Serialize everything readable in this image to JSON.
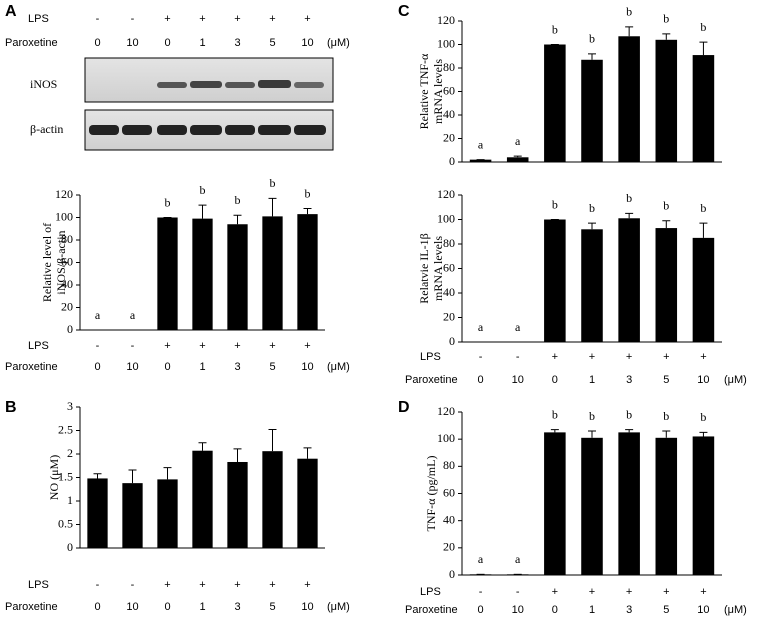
{
  "panel_labels": [
    "A",
    "B",
    "C",
    "D"
  ],
  "blot": {
    "treatments": [
      {
        "name": "LPS",
        "labels": [
          "-",
          "-",
          "+",
          "+",
          "+",
          "+",
          "+"
        ]
      },
      {
        "name": "Paroxetine",
        "labels": [
          "0",
          "10",
          "0",
          "1",
          "3",
          "5",
          "10"
        ]
      }
    ],
    "unit": "(μM)",
    "bands": [
      "iNOS",
      "β-actin"
    ]
  },
  "chart_data": [
    {
      "type": "bar",
      "ylabel": [
        "Relative level of",
        "iNOS/β-actin"
      ],
      "values": [
        0,
        0,
        100,
        99,
        94,
        101,
        103
      ],
      "errors": [
        0,
        0,
        0,
        12,
        8,
        16,
        5
      ],
      "annotations": [
        "a",
        "a",
        "b",
        "b",
        "b",
        "b",
        "b"
      ],
      "color": "#000000",
      "ylim": [
        0,
        120
      ],
      "yticks": [
        0,
        20,
        40,
        60,
        80,
        100,
        120
      ],
      "treatments": [
        {
          "name": "LPS",
          "labels": [
            "-",
            "-",
            "+",
            "+",
            "+",
            "+",
            "+"
          ]
        },
        {
          "name": "Paroxetine",
          "labels": [
            "0",
            "10",
            "0",
            "1",
            "3",
            "5",
            "10"
          ]
        }
      ],
      "unit": "(μM)"
    },
    {
      "type": "bar",
      "ylabel": [
        "NO (μM)"
      ],
      "values": [
        1.48,
        1.38,
        1.46,
        2.07,
        1.83,
        2.06,
        1.9
      ],
      "errors": [
        0.1,
        0.28,
        0.25,
        0.17,
        0.28,
        0.46,
        0.23
      ],
      "color": "#000000",
      "ylim": [
        0,
        3
      ],
      "yticks": [
        0,
        0.5,
        1,
        1.5,
        2,
        2.5,
        3
      ],
      "treatments": [
        {
          "name": "LPS",
          "labels": [
            "-",
            "-",
            "+",
            "+",
            "+",
            "+",
            "+"
          ]
        },
        {
          "name": "Paroxetine",
          "labels": [
            "0",
            "10",
            "0",
            "1",
            "3",
            "5",
            "10"
          ]
        }
      ],
      "unit": "(μM)"
    },
    {
      "type": "bar",
      "ylabel": [
        "Relative TNF-α",
        "mRNA levels"
      ],
      "values": [
        2,
        4,
        100,
        87,
        107,
        104,
        91
      ],
      "errors": [
        0,
        1,
        0,
        5,
        8,
        5,
        11
      ],
      "annotations": [
        "a",
        "a",
        "b",
        "b",
        "b",
        "b",
        "b"
      ],
      "color": "#000000",
      "ylim": [
        0,
        120
      ],
      "yticks": [
        0,
        20,
        40,
        60,
        80,
        100,
        120
      ]
    },
    {
      "type": "bar",
      "ylabel": [
        "Relatvie IL-1β",
        "mRNA levels"
      ],
      "values": [
        0,
        0,
        100,
        92,
        101,
        93,
        85
      ],
      "errors": [
        0,
        0,
        0,
        5,
        4,
        6,
        12
      ],
      "annotations": [
        "a",
        "a",
        "b",
        "b",
        "b",
        "b",
        "b"
      ],
      "color": "#000000",
      "ylim": [
        0,
        120
      ],
      "yticks": [
        0,
        20,
        40,
        60,
        80,
        100,
        120
      ],
      "treatments": [
        {
          "name": "LPS",
          "labels": [
            "-",
            "-",
            "+",
            "+",
            "+",
            "+",
            "+"
          ]
        },
        {
          "name": "Paroxetine",
          "labels": [
            "0",
            "10",
            "0",
            "1",
            "3",
            "5",
            "10"
          ]
        }
      ],
      "unit": "(μM)"
    },
    {
      "type": "bar",
      "ylabel": [
        "TNF-α (pg/mL)"
      ],
      "values": [
        0.5,
        0.5,
        105,
        101,
        105,
        101,
        102
      ],
      "errors": [
        0,
        0,
        2,
        5,
        2,
        5,
        3
      ],
      "annotations": [
        "a",
        "a",
        "b",
        "b",
        "b",
        "b",
        "b"
      ],
      "color": "#000000",
      "ylim": [
        0,
        120
      ],
      "yticks": [
        0,
        20,
        40,
        60,
        80,
        100,
        120
      ],
      "treatments": [
        {
          "name": "LPS",
          "labels": [
            "-",
            "-",
            "+",
            "+",
            "+",
            "+",
            "+"
          ]
        },
        {
          "name": "Paroxetine",
          "labels": [
            "0",
            "10",
            "0",
            "1",
            "3",
            "5",
            "10"
          ]
        }
      ],
      "unit": "(μM)"
    }
  ]
}
